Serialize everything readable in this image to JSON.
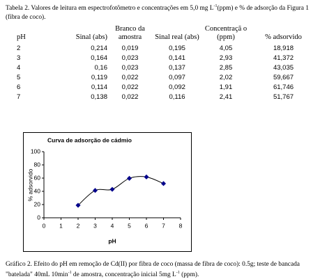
{
  "header": {
    "text1": "Tabela 2.  Valores de leitura em espectrofotômetro e concentrações em 5,0 mg L",
    "sup1": "-1",
    "text2": "(ppm) e % de adsorção da Figura 1 (fibra de coco)."
  },
  "table": {
    "columns": [
      "pH",
      "Sinal (abs)",
      "Branco da amostra",
      "Sinal real (abs)",
      "Concentraçã o (ppm)",
      "% adsorvido"
    ],
    "rows": [
      [
        "2",
        "0,214",
        "0,019",
        "0,195",
        "4,05",
        "18,918"
      ],
      [
        "3",
        "0,164",
        "0,023",
        "0,141",
        "2,93",
        "41,372"
      ],
      [
        "4",
        "0,16",
        "0,023",
        "0,137",
        "2,85",
        "43,035"
      ],
      [
        "5",
        "0,119",
        "0,022",
        "0,097",
        "2,02",
        "59,667"
      ],
      [
        "6",
        "0,114",
        "0,022",
        "0,092",
        "1,91",
        "61,746"
      ],
      [
        "7",
        "0,138",
        "0,022",
        "0,116",
        "2,41",
        "51,767"
      ]
    ]
  },
  "chart_data": {
    "type": "scatter",
    "title": "Curva de adsorção de cádmio",
    "x_label": "pH",
    "y_label": "% adsorvido",
    "x": [
      2,
      3,
      4,
      5,
      6,
      7
    ],
    "values": [
      18.918,
      41.372,
      43.035,
      59.667,
      61.746,
      51.767
    ],
    "color": "#00008b",
    "xlim": [
      0,
      8
    ],
    "xticks": [
      0,
      1,
      2,
      3,
      4,
      5,
      6,
      7,
      8
    ],
    "ylim": [
      0,
      100
    ],
    "yticks": [
      0,
      20,
      40,
      60,
      80,
      100
    ],
    "trendline": true
  },
  "caption": {
    "text1": "Gráfico 2.  Efeito do pH em remoção de Cd(II) por fibra de coco (massa de fibra de coco):  0.5g; teste de bancada \"batelada\" 40mL 10min",
    "sup1": "-1",
    "text2": " de amostra, concentração inicial 5mg L",
    "sup2": "-1",
    "text3": " (ppm)."
  }
}
